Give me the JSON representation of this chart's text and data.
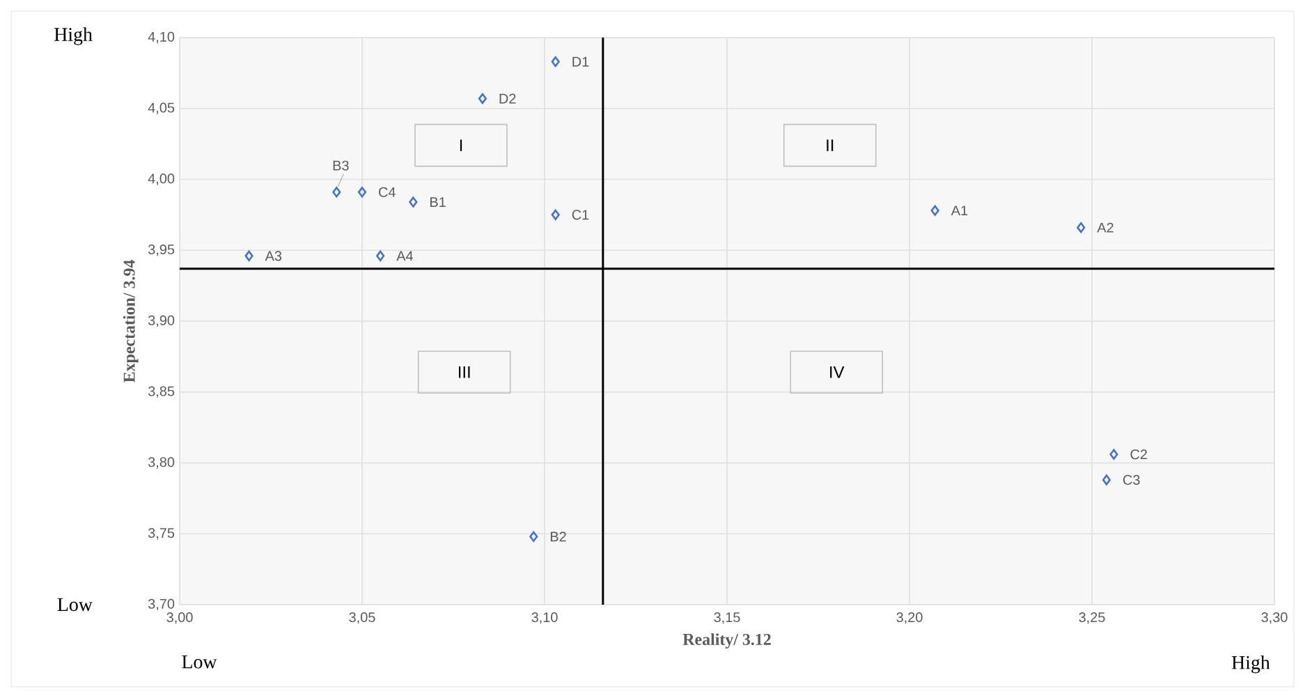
{
  "chart_data": {
    "type": "scatter",
    "xlabel": "Reality/ 3.12",
    "ylabel": "Expectation/ 3.94",
    "series": [
      {
        "color": "#4472c4",
        "x": [
          3.207,
          3.247,
          3.019,
          3.055,
          3.064,
          3.097,
          3.043,
          3.103,
          3.256,
          3.254,
          3.05,
          3.103,
          3.083
        ],
        "values": [
          3.978,
          3.966,
          3.946,
          3.946,
          3.984,
          3.748,
          3.991,
          3.975,
          3.806,
          3.788,
          3.991,
          4.083,
          4.057
        ],
        "value_labels": [
          "A1",
          "A2",
          "A3",
          "A4",
          "B1",
          "B2",
          "B3",
          "C1",
          "C2",
          "C3",
          "C4",
          "D1",
          "D2"
        ]
      }
    ],
    "marker": "diamond",
    "grid": true,
    "xlim": [
      3.0,
      3.3
    ],
    "ylim": [
      3.7,
      4.1
    ],
    "xticks": [
      {
        "value": 3.0,
        "label": "3,00"
      },
      {
        "value": 3.05,
        "label": "3,05"
      },
      {
        "value": 3.1,
        "label": "3,10"
      },
      {
        "value": 3.15,
        "label": "3,15"
      },
      {
        "value": 3.2,
        "label": "3,20"
      },
      {
        "value": 3.25,
        "label": "3,25"
      },
      {
        "value": 3.3,
        "label": "3,30"
      }
    ],
    "yticks": [
      {
        "value": 3.7,
        "label": "3,70"
      },
      {
        "value": 3.75,
        "label": "3,75"
      },
      {
        "value": 3.8,
        "label": "3,80"
      },
      {
        "value": 3.85,
        "label": "3,85"
      },
      {
        "value": 3.9,
        "label": "3,90"
      },
      {
        "value": 3.95,
        "label": "3,95"
      },
      {
        "value": 4.0,
        "label": "4,00"
      },
      {
        "value": 4.05,
        "label": "4,05"
      },
      {
        "value": 4.1,
        "label": "4,10"
      }
    ],
    "ref_lines": [
      {
        "axis": "x",
        "value": 3.116,
        "color": "#000000"
      },
      {
        "axis": "y",
        "value": 3.937,
        "color": "#000000"
      }
    ],
    "annotations": [
      "I",
      "II",
      "III",
      "IV",
      "High",
      "Low",
      "Low",
      "High"
    ]
  }
}
